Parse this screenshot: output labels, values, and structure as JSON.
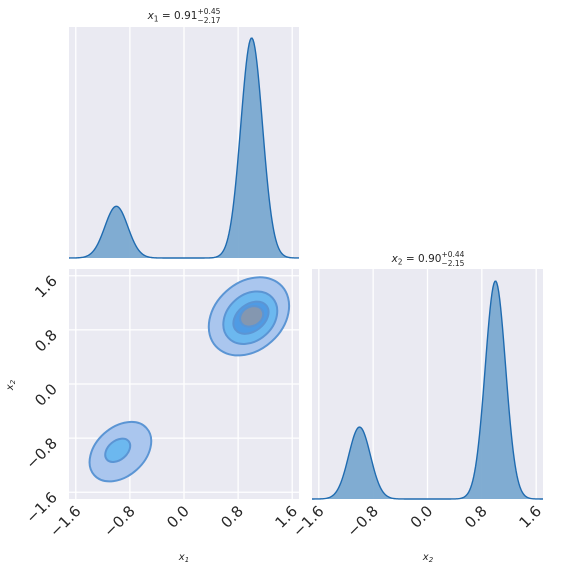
{
  "chart_data": [
    {
      "type": "area",
      "panel": "marginal-x1",
      "title": "x_1 = 0.91 +0.45 −2.17",
      "title_parts": {
        "var": "x",
        "sub": "1",
        "value": "0.91",
        "plus": "+0.45",
        "minus": "−2.17"
      },
      "x_range": [
        -1.7,
        1.7
      ],
      "peaks": [
        {
          "center": -1.0,
          "sigma": 0.17,
          "relative_height": 0.235
        },
        {
          "center": 1.0,
          "sigma": 0.16,
          "relative_height": 1.0
        }
      ],
      "fill_color": "#7aa9d0",
      "line_color": "#1f6bb0"
    },
    {
      "type": "contour",
      "panel": "joint-x1-x2",
      "xlabel": "x_1",
      "ylabel": "x_2",
      "x_range": [
        -1.7,
        1.7
      ],
      "y_range": [
        -1.7,
        1.7
      ],
      "x_ticks": [
        "−1.6",
        "−0.8",
        "0.0",
        "0.8",
        "1.6"
      ],
      "y_ticks": [
        "−1.6",
        "−0.8",
        "0.0",
        "0.8",
        "1.6"
      ],
      "x_tick_values": [
        -1.6,
        -0.8,
        0.0,
        0.8,
        1.6
      ],
      "y_tick_values": [
        -1.6,
        -0.8,
        0.0,
        0.8,
        1.6
      ],
      "clusters": [
        {
          "name": "upper-right",
          "levels": [
            {
              "cx": 0.96,
              "cy": 1.0,
              "rx": 0.66,
              "ry": 0.5,
              "angle": -42,
              "fill": "#aac6ee"
            },
            {
              "cx": 0.98,
              "cy": 0.98,
              "rx": 0.44,
              "ry": 0.34,
              "angle": -42,
              "fill": "#6cb8ef"
            },
            {
              "cx": 0.99,
              "cy": 0.98,
              "rx": 0.29,
              "ry": 0.2,
              "angle": -38,
              "fill": "#4f9be4"
            },
            {
              "cx": 1.0,
              "cy": 1.0,
              "rx": 0.18,
              "ry": 0.14,
              "angle": -30,
              "fill": "#8497b0"
            }
          ]
        },
        {
          "name": "lower-left",
          "levels": [
            {
              "cx": -0.94,
              "cy": -1.0,
              "rx": 0.52,
              "ry": 0.36,
              "angle": -42,
              "fill": "#aac6ee"
            },
            {
              "cx": -0.98,
              "cy": -0.98,
              "rx": 0.21,
              "ry": 0.14,
              "angle": -40,
              "fill": "#6cb8ef"
            }
          ]
        }
      ],
      "stroke_color": "#5b95d4"
    },
    {
      "type": "area",
      "panel": "marginal-x2",
      "title": "x_2 = 0.90 +0.44 −2.15",
      "title_parts": {
        "var": "x",
        "sub": "2",
        "value": "0.90",
        "plus": "+0.44",
        "minus": "−2.15"
      },
      "xlabel": "x_2",
      "x_range": [
        -1.7,
        1.7
      ],
      "x_ticks": [
        "−1.6",
        "−0.8",
        "0.0",
        "0.8",
        "1.6"
      ],
      "x_tick_values": [
        -1.6,
        -0.8,
        0.0,
        0.8,
        1.6
      ],
      "peaks": [
        {
          "center": -1.0,
          "sigma": 0.16,
          "relative_height": 0.33
        },
        {
          "center": 1.0,
          "sigma": 0.15,
          "relative_height": 1.0
        }
      ],
      "fill_color": "#7aa9d0",
      "line_color": "#1f6bb0"
    }
  ],
  "colors": {
    "panel_bg": "#eaeaf2",
    "grid": "#ffffff",
    "text": "#262626"
  }
}
